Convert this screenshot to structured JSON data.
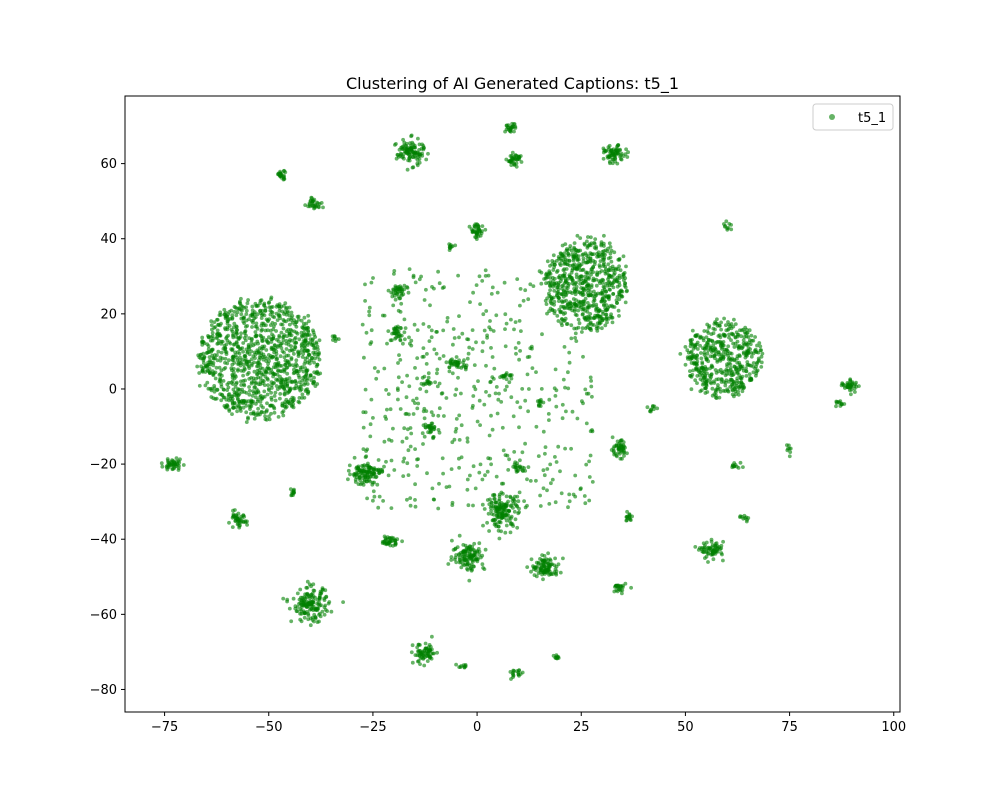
{
  "chart_data": {
    "type": "scatter",
    "title": "Clustering of AI Generated Captions: t5_1",
    "xlabel": "",
    "ylabel": "",
    "xlim": [
      -84.5,
      101.5
    ],
    "ylim": [
      -86,
      78
    ],
    "xticks": [
      -75,
      -50,
      -25,
      0,
      25,
      50,
      75,
      100
    ],
    "yticks": [
      -80,
      -60,
      -40,
      -20,
      0,
      20,
      40,
      60
    ],
    "grid": false,
    "legend_position": "top-right",
    "series": [
      {
        "name": "t5_1",
        "color": "#008000",
        "alpha": 0.6,
        "clusters": [
          {
            "cx": -52,
            "cy": 8,
            "rx": 14.5,
            "ry": 16,
            "n": 1100
          },
          {
            "cx": 26,
            "cy": 28,
            "rx": 10,
            "ry": 12.5,
            "n": 650
          },
          {
            "cx": 59,
            "cy": 8,
            "rx": 9,
            "ry": 10,
            "n": 500
          },
          {
            "cx": -16,
            "cy": 63,
            "rx": 3,
            "ry": 3,
            "n": 110
          },
          {
            "cx": 8,
            "cy": 69.5,
            "rx": 1.2,
            "ry": 1,
            "n": 25
          },
          {
            "cx": 9,
            "cy": 61,
            "rx": 1.6,
            "ry": 1.4,
            "n": 40
          },
          {
            "cx": 33,
            "cy": 62.5,
            "rx": 2.3,
            "ry": 2,
            "n": 70
          },
          {
            "cx": -47,
            "cy": 57,
            "rx": 1.2,
            "ry": 1,
            "n": 25
          },
          {
            "cx": -39,
            "cy": 49.5,
            "rx": 1.6,
            "ry": 1.5,
            "n": 30
          },
          {
            "cx": 0,
            "cy": 42,
            "rx": 1.5,
            "ry": 1.8,
            "n": 40
          },
          {
            "cx": -6,
            "cy": 38,
            "rx": 0.8,
            "ry": 0.8,
            "n": 10
          },
          {
            "cx": 60,
            "cy": 43.5,
            "rx": 1.2,
            "ry": 1.5,
            "n": 10
          },
          {
            "cx": -19,
            "cy": 26,
            "rx": 1.6,
            "ry": 1.5,
            "n": 35
          },
          {
            "cx": -19,
            "cy": 15,
            "rx": 1.5,
            "ry": 1.5,
            "n": 30
          },
          {
            "cx": -5,
            "cy": 7,
            "rx": 2,
            "ry": 1.5,
            "n": 35
          },
          {
            "cx": -12,
            "cy": 2,
            "rx": 1.4,
            "ry": 1,
            "n": 15
          },
          {
            "cx": 7,
            "cy": 3.5,
            "rx": 1.2,
            "ry": 1,
            "n": 15
          },
          {
            "cx": 89.5,
            "cy": 1,
            "rx": 2,
            "ry": 1.5,
            "n": 40
          },
          {
            "cx": 87,
            "cy": -4,
            "rx": 1,
            "ry": 1,
            "n": 12
          },
          {
            "cx": -73,
            "cy": -20,
            "rx": 2,
            "ry": 1.5,
            "n": 45
          },
          {
            "cx": -27,
            "cy": -22.5,
            "rx": 3.5,
            "ry": 2.5,
            "n": 110
          },
          {
            "cx": 34,
            "cy": -16,
            "rx": 1.8,
            "ry": 2,
            "n": 50
          },
          {
            "cx": -57.5,
            "cy": -35,
            "rx": 2,
            "ry": 1.8,
            "n": 45
          },
          {
            "cx": 6,
            "cy": -32.5,
            "rx": 3.5,
            "ry": 4,
            "n": 150
          },
          {
            "cx": -2,
            "cy": -44.5,
            "rx": 3.5,
            "ry": 3.5,
            "n": 120
          },
          {
            "cx": 16.5,
            "cy": -47.5,
            "rx": 3,
            "ry": 2.5,
            "n": 100
          },
          {
            "cx": 56.5,
            "cy": -43,
            "rx": 2.5,
            "ry": 2,
            "n": 70
          },
          {
            "cx": -21,
            "cy": -40.5,
            "rx": 2,
            "ry": 1.2,
            "n": 40
          },
          {
            "cx": -40,
            "cy": -57.5,
            "rx": 4,
            "ry": 4,
            "n": 160
          },
          {
            "cx": -12.5,
            "cy": -70.5,
            "rx": 2.5,
            "ry": 2.5,
            "n": 70
          },
          {
            "cx": 34,
            "cy": -53,
            "rx": 1.5,
            "ry": 1.5,
            "n": 25
          },
          {
            "cx": 9.5,
            "cy": -76,
            "rx": 1.5,
            "ry": 1.2,
            "n": 18
          },
          {
            "cx": 18.5,
            "cy": -71.5,
            "rx": 1,
            "ry": 0.8,
            "n": 10
          },
          {
            "cx": 36.5,
            "cy": -34,
            "rx": 1.2,
            "ry": 1,
            "n": 15
          },
          {
            "cx": -11,
            "cy": -10.5,
            "rx": 1.5,
            "ry": 1,
            "n": 25
          },
          {
            "cx": 10,
            "cy": -21,
            "rx": 1.5,
            "ry": 1,
            "n": 20
          },
          {
            "cx": -44,
            "cy": -27.5,
            "rx": 1,
            "ry": 1,
            "n": 12
          },
          {
            "cx": 62,
            "cy": -20.5,
            "rx": 1.5,
            "ry": 1,
            "n": 12
          },
          {
            "cx": 64,
            "cy": -34.5,
            "rx": 1,
            "ry": 0.8,
            "n": 10
          },
          {
            "cx": 75,
            "cy": -15.5,
            "rx": 0.6,
            "ry": 2,
            "n": 8
          },
          {
            "cx": 42,
            "cy": -5,
            "rx": 1,
            "ry": 1,
            "n": 10
          },
          {
            "cx": -34,
            "cy": 13.5,
            "rx": 1,
            "ry": 1,
            "n": 8
          },
          {
            "cx": 15,
            "cy": -4,
            "rx": 1,
            "ry": 1,
            "n": 8
          },
          {
            "cx": -3,
            "cy": -73.5,
            "rx": 1.2,
            "ry": 0.8,
            "n": 10
          },
          {
            "cx": 0,
            "cy": 0,
            "rx": 28,
            "ry": 32,
            "n": 500
          }
        ]
      }
    ]
  }
}
